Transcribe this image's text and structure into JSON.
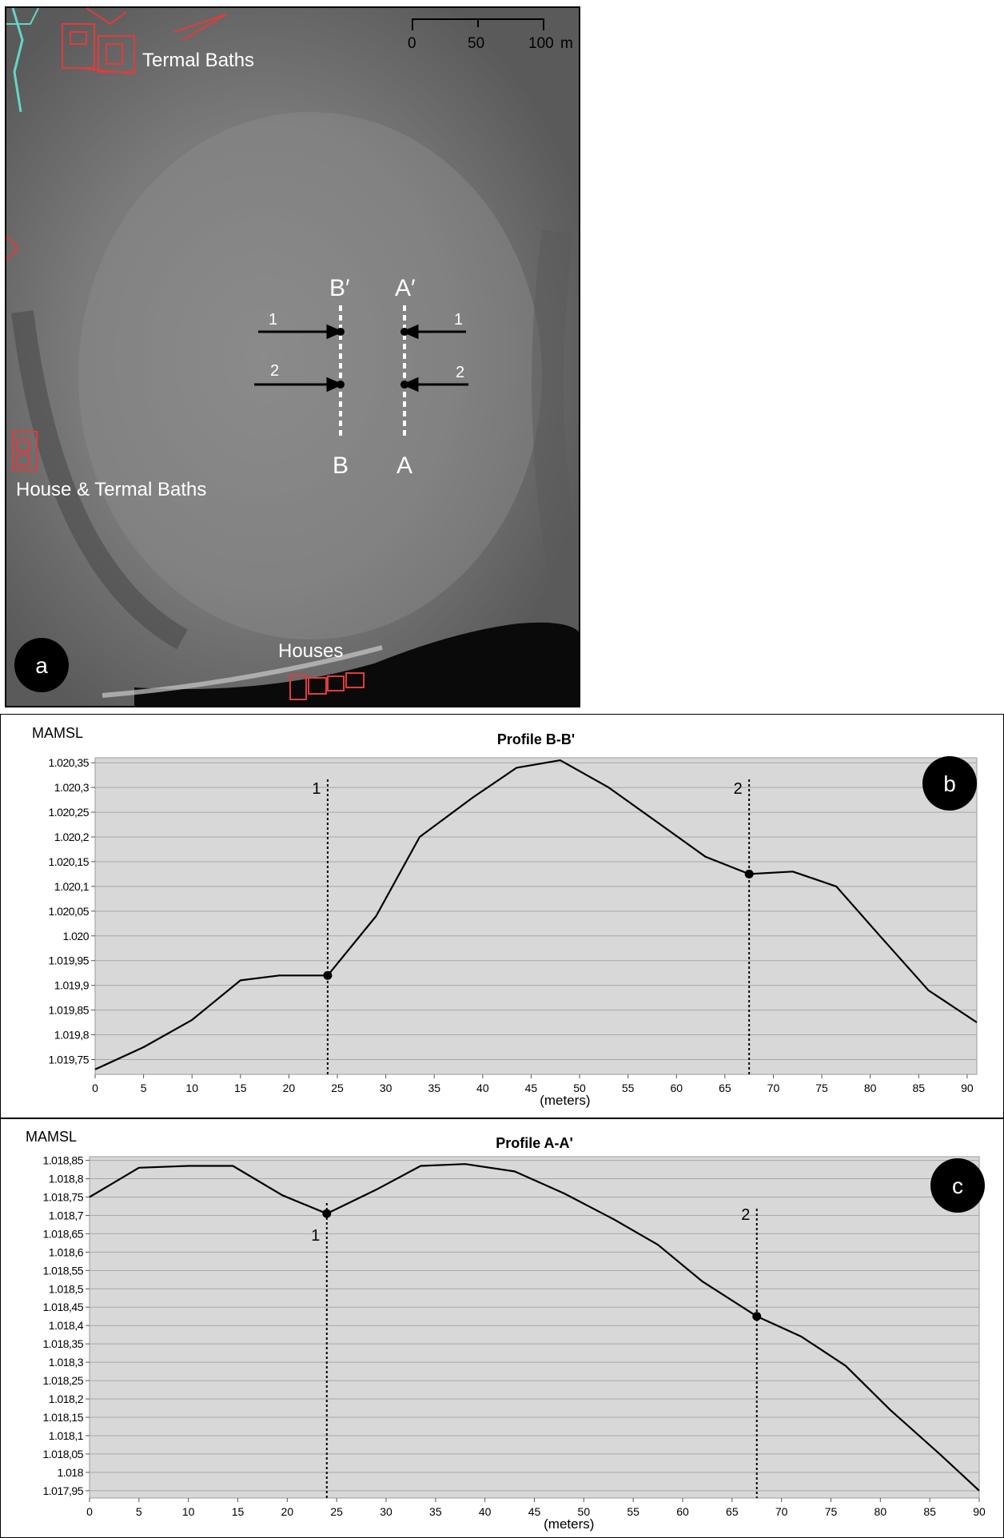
{
  "map": {
    "panel_label": "a",
    "labels": {
      "termal_baths": "Termal Baths",
      "house_termal_baths": "House & Termal Baths",
      "houses": "Houses"
    },
    "profile_labels": {
      "b_prime": "B′",
      "a_prime": "A′",
      "b": "B",
      "a": "A"
    },
    "marker_labels": {
      "m1": "1",
      "m2": "2"
    },
    "scale_bar": {
      "ticks": [
        "0",
        "50",
        "100"
      ],
      "unit": "m"
    },
    "colors": {
      "ruins": "#e23b3b",
      "river": "#63d6c8",
      "background": "#7a7a7a"
    }
  },
  "chart_data": [
    {
      "type": "line",
      "panel_label": "b",
      "title": "Profile B-B'",
      "ylabel": "MAMSL",
      "xlabel": "(meters)",
      "xlim": [
        0,
        91
      ],
      "ylim": [
        1019.72,
        1020.36
      ],
      "xticks": [
        0,
        5,
        10,
        15,
        20,
        25,
        30,
        35,
        40,
        45,
        50,
        55,
        60,
        65,
        70,
        75,
        80,
        85,
        90
      ],
      "yticks": [
        1019.75,
        1019.8,
        1019.85,
        1019.9,
        1019.95,
        1020.0,
        1020.05,
        1020.1,
        1020.15,
        1020.2,
        1020.25,
        1020.3,
        1020.35
      ],
      "ytick_labels": [
        "1.019,75",
        "1.019,8",
        "1.019,85",
        "1.019,9",
        "1.019,95",
        "1.020",
        "1.020,05",
        "1.020,1",
        "1.020,15",
        "1.020,2",
        "1.020,25",
        "1.020,3",
        "1.020,35"
      ],
      "grid": true,
      "series": [
        {
          "x": [
            0,
            5,
            10,
            15,
            19,
            24,
            29,
            33.5,
            39,
            43.5,
            48,
            53,
            58,
            63,
            67.5,
            72,
            76.5,
            81,
            86,
            91
          ],
          "y": [
            1019.73,
            1019.775,
            1019.83,
            1019.91,
            1019.92,
            1019.92,
            1020.04,
            1020.2,
            1020.28,
            1020.34,
            1020.355,
            1020.3,
            1020.23,
            1020.16,
            1020.125,
            1020.13,
            1020.1,
            1020.0,
            1019.89,
            1019.825
          ]
        }
      ],
      "markers": [
        {
          "label": "1",
          "x": 24,
          "y": 1019.92
        },
        {
          "label": "2",
          "x": 67.5,
          "y": 1020.125
        }
      ]
    },
    {
      "type": "line",
      "panel_label": "c",
      "title": "Profile A-A'",
      "ylabel": "MAMSL",
      "xlabel": "(meters)",
      "xlim": [
        0,
        90
      ],
      "ylim": [
        1017.93,
        1018.86
      ],
      "xticks": [
        0,
        5,
        10,
        15,
        20,
        25,
        30,
        35,
        40,
        45,
        50,
        55,
        60,
        65,
        70,
        75,
        80,
        85,
        90
      ],
      "yticks": [
        1017.95,
        1018.0,
        1018.05,
        1018.1,
        1018.15,
        1018.2,
        1018.25,
        1018.3,
        1018.35,
        1018.4,
        1018.45,
        1018.5,
        1018.55,
        1018.6,
        1018.65,
        1018.7,
        1018.75,
        1018.8,
        1018.85
      ],
      "ytick_labels": [
        "1.017,95",
        "1.018",
        "1.018,05",
        "1.018,1",
        "1.018,15",
        "1.018,2",
        "1.018,25",
        "1.018,3",
        "1.018,35",
        "1.018,4",
        "1.018,45",
        "1.018,5",
        "1.018,55",
        "1.018,6",
        "1.018,65",
        "1.018,7",
        "1.018,75",
        "1.018,8",
        "1.018,85"
      ],
      "grid": true,
      "series": [
        {
          "x": [
            0,
            5,
            10,
            14.5,
            19.5,
            24,
            29,
            33.5,
            38,
            43,
            48,
            53,
            57.5,
            62,
            67.5,
            72,
            76.5,
            81,
            86,
            90
          ],
          "y": [
            1018.75,
            1018.83,
            1018.835,
            1018.835,
            1018.755,
            1018.705,
            1018.77,
            1018.835,
            1018.84,
            1018.82,
            1018.76,
            1018.69,
            1018.62,
            1018.52,
            1018.425,
            1018.37,
            1018.29,
            1018.17,
            1018.05,
            1017.95
          ]
        }
      ],
      "markers": [
        {
          "label": "1",
          "x": 24,
          "y": 1018.705
        },
        {
          "label": "2",
          "x": 67.5,
          "y": 1018.425
        }
      ]
    }
  ]
}
